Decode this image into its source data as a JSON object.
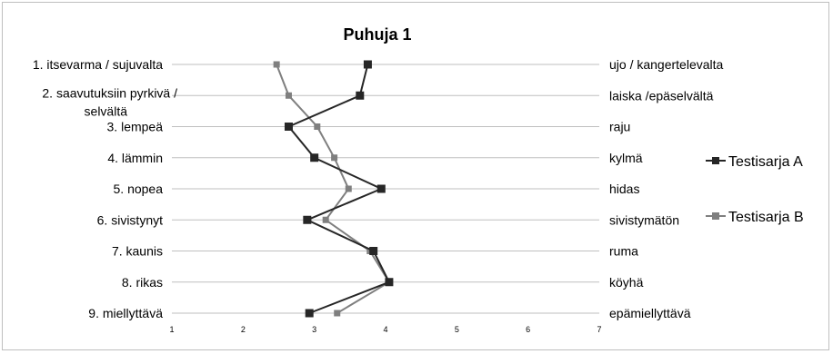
{
  "chart_data": {
    "type": "line",
    "orientation": "horizontal-profile",
    "title": "Puhuja 1",
    "left_labels": [
      [
        "1. itsevarma / sujuvalta"
      ],
      [
        "2. saavutuksiin pyrkivä /",
        "selvältä"
      ],
      [
        "3. lempeä"
      ],
      [
        "4. lämmin"
      ],
      [
        "5. nopea"
      ],
      [
        "6. sivistynyt"
      ],
      [
        "7. kaunis"
      ],
      [
        "8. rikas"
      ],
      [
        "9. miellyttävä"
      ]
    ],
    "right_labels": [
      "ujo / kangertelevalta",
      "laiska /epäselvältä",
      "raju",
      "kylmä",
      "hidas",
      "sivistymätön",
      "ruma",
      "köyhä",
      "epämiellyttävä"
    ],
    "x_ticks": [
      "1",
      "2",
      "3",
      "4",
      "5",
      "6",
      "7"
    ],
    "xlim": [
      1,
      7
    ],
    "grid": true,
    "legend_position": "right",
    "series": [
      {
        "name": "Testisarja A",
        "color": "#262626",
        "marker": "square",
        "values": [
          3.75,
          3.64,
          2.64,
          3.0,
          3.94,
          2.9,
          3.83,
          4.05,
          2.93
        ]
      },
      {
        "name": "Testisarja B",
        "color": "#7f7f7f",
        "marker": "square",
        "values": [
          2.47,
          2.64,
          3.04,
          3.28,
          3.48,
          3.16,
          3.78,
          4.05,
          3.32
        ]
      }
    ]
  }
}
